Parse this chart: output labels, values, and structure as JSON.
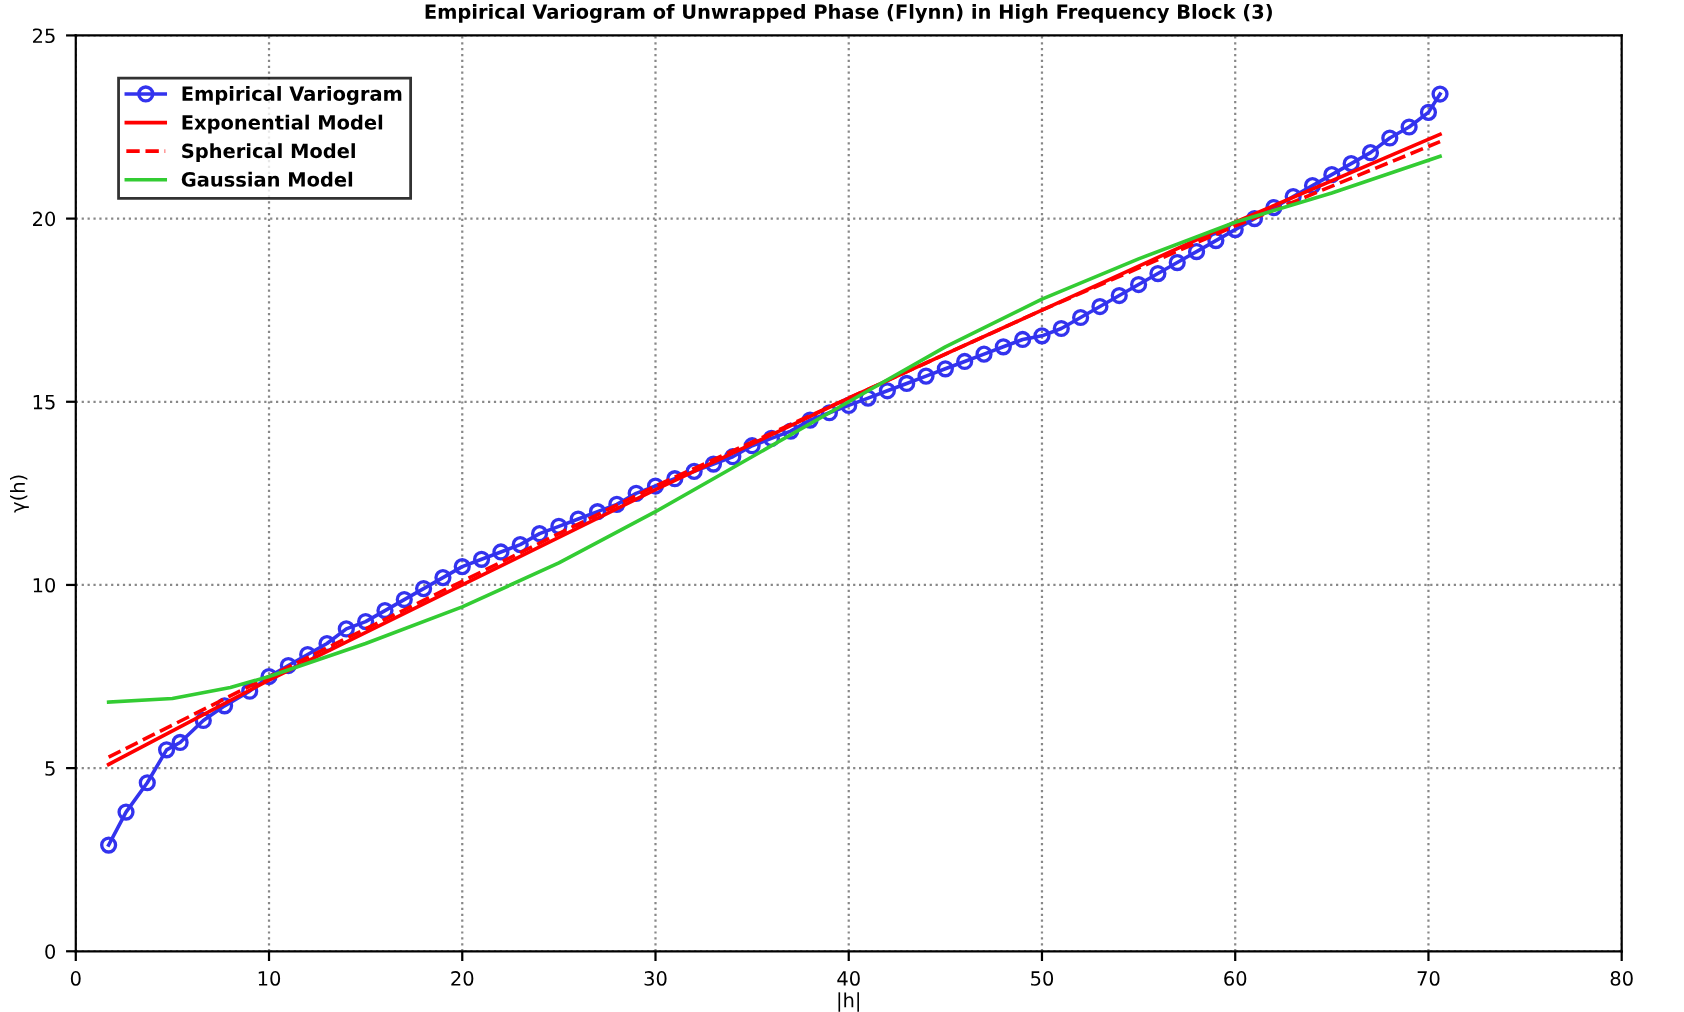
{
  "chart_data": {
    "type": "line",
    "title": "Empirical Variogram of Unwrapped Phase (Flynn) in High Frequency Block (3)",
    "xlabel": "|h|",
    "ylabel": "γ(h)",
    "xlim": [
      0,
      80
    ],
    "xticks": [
      0,
      10,
      20,
      30,
      40,
      50,
      60,
      70,
      80
    ],
    "ylim": [
      0,
      25
    ],
    "yticks": [
      0,
      5,
      10,
      15,
      20,
      25
    ],
    "grid": true,
    "legend": "top left",
    "series": [
      {
        "name": "Empirical Variogram",
        "color": "#3333ee",
        "marker": "circle",
        "line_style": "solid",
        "x": [
          1.7,
          2.6,
          3.7,
          4.7,
          5.4,
          6.6,
          7.7,
          9,
          10,
          11,
          12,
          13,
          14,
          15,
          16,
          17,
          18,
          19,
          20,
          21,
          22,
          23,
          24,
          25,
          26,
          27,
          28,
          29,
          30,
          31,
          32,
          33,
          34,
          35,
          36,
          37,
          38,
          39,
          40,
          41,
          42,
          43,
          44,
          45,
          46,
          47,
          48,
          49,
          50,
          51,
          52,
          53,
          54,
          55,
          56,
          57,
          58,
          59,
          60,
          61,
          62,
          63,
          64,
          65,
          66,
          67,
          68,
          69,
          70,
          70.6
        ],
        "values": [
          2.9,
          3.8,
          4.6,
          5.5,
          5.7,
          6.3,
          6.7,
          7.1,
          7.5,
          7.8,
          8.1,
          8.4,
          8.8,
          9.0,
          9.3,
          9.6,
          9.9,
          10.2,
          10.5,
          10.7,
          10.9,
          11.1,
          11.4,
          11.6,
          11.8,
          12.0,
          12.2,
          12.5,
          12.7,
          12.9,
          13.1,
          13.3,
          13.5,
          13.8,
          14.0,
          14.2,
          14.5,
          14.7,
          14.9,
          15.1,
          15.3,
          15.5,
          15.7,
          15.9,
          16.1,
          16.3,
          16.5,
          16.7,
          16.8,
          17.0,
          17.3,
          17.6,
          17.9,
          18.2,
          18.5,
          18.8,
          19.1,
          19.4,
          19.7,
          20.0,
          20.3,
          20.6,
          20.9,
          21.2,
          21.5,
          21.8,
          22.2,
          22.5,
          22.9,
          23.4
        ]
      },
      {
        "name": "Exponential Model",
        "color": "#ff0000",
        "marker": "none",
        "line_style": "solid",
        "x": [
          1.7,
          10,
          20,
          30,
          40,
          50,
          60,
          70.6
        ],
        "values": [
          5.1,
          7.4,
          10.0,
          12.6,
          15.1,
          17.5,
          19.9,
          22.3
        ]
      },
      {
        "name": "Spherical Model",
        "color": "#ff0000",
        "marker": "none",
        "line_style": "dashed",
        "x": [
          1.7,
          10,
          20,
          30,
          40,
          50,
          60,
          70.6
        ],
        "values": [
          5.3,
          7.5,
          10.1,
          12.7,
          15.1,
          17.5,
          19.8,
          22.1
        ]
      },
      {
        "name": "Gaussian Model",
        "color": "#33cc33",
        "marker": "none",
        "line_style": "solid",
        "x": [
          1.7,
          5,
          8,
          10,
          15,
          20,
          25,
          30,
          35,
          40,
          45,
          50,
          55,
          60,
          65,
          70.6
        ],
        "values": [
          6.8,
          6.9,
          7.2,
          7.5,
          8.4,
          9.4,
          10.6,
          12.0,
          13.5,
          15.0,
          16.5,
          17.8,
          18.9,
          19.9,
          20.7,
          21.7
        ]
      }
    ]
  }
}
